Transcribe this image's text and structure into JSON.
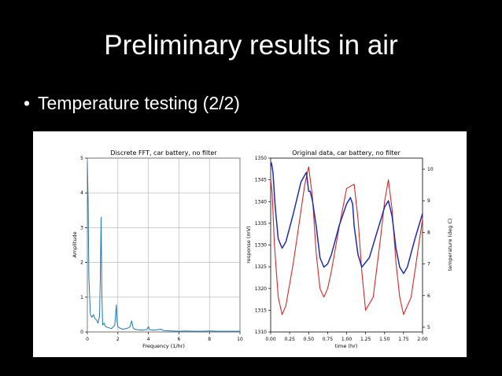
{
  "slide": {
    "title": "Preliminary results in air",
    "bullet": "Temperature testing (2/2)",
    "bullet_marker": "•"
  },
  "colors": {
    "fft_line": "#1f77b4",
    "response_line": "#d62728",
    "temperature_line": "#1f2db0"
  },
  "chart_data": [
    {
      "type": "line",
      "title": "Discrete FFT, car battery, no filter",
      "xlabel": "Frequency (1/hr)",
      "ylabel": "Amplitude",
      "xlim": [
        0,
        10
      ],
      "ylim": [
        0,
        5
      ],
      "xticks": [
        0,
        2,
        4,
        6,
        8,
        10
      ],
      "yticks": [
        0,
        1,
        2,
        3,
        4,
        5
      ],
      "grid": true,
      "series": [
        {
          "x": [
            0,
            0.05,
            0.1,
            0.2,
            0.3,
            0.4,
            0.5,
            0.6,
            0.7,
            0.8,
            0.85,
            0.9,
            0.95,
            1.0,
            1.1,
            1.2,
            1.4,
            1.6,
            1.8,
            1.9,
            1.95,
            2.0,
            2.1,
            2.3,
            2.6,
            2.8,
            2.9,
            3.0,
            3.1,
            3.3,
            3.6,
            3.9,
            4.0,
            4.1,
            4.4,
            4.8,
            5.0,
            5.5,
            6.0,
            6.5,
            7.0,
            7.5,
            8.0,
            8.5,
            9.0,
            9.5,
            10.0
          ],
          "values": [
            4.9,
            3.8,
            1.6,
            0.5,
            0.42,
            0.5,
            0.38,
            0.35,
            0.25,
            0.45,
            1.6,
            3.3,
            1.2,
            0.2,
            0.25,
            0.15,
            0.12,
            0.1,
            0.2,
            0.78,
            0.3,
            0.15,
            0.12,
            0.08,
            0.1,
            0.15,
            0.32,
            0.12,
            0.08,
            0.06,
            0.05,
            0.07,
            0.15,
            0.06,
            0.05,
            0.08,
            0.04,
            0.03,
            0.02,
            0.03,
            0.02,
            0.02,
            0.03,
            0.02,
            0.02,
            0.02,
            0.02
          ]
        }
      ]
    },
    {
      "type": "line",
      "title": "Original data, car battery, no filter",
      "xlabel": "time (hr)",
      "ylabel": "response (mV)",
      "y2label": "temperature (deg C)",
      "xlim": [
        0,
        2
      ],
      "ylim": [
        1310,
        1350
      ],
      "y2lim": [
        4.85,
        10.35
      ],
      "xticks": [
        "0.00",
        "0.25",
        "0.50",
        "0.75",
        "1.00",
        "1.25",
        "1.50",
        "1.75",
        "2.00"
      ],
      "yticks": [
        1310,
        1315,
        1320,
        1325,
        1330,
        1335,
        1340,
        1345,
        1350
      ],
      "y2ticks": [
        5,
        6,
        7,
        8,
        9,
        10
      ],
      "grid": false,
      "series": [
        {
          "axis": "left",
          "x": [
            0.0,
            0.02,
            0.05,
            0.1,
            0.15,
            0.2,
            0.3,
            0.4,
            0.45,
            0.5,
            0.55,
            0.6,
            0.65,
            0.7,
            0.75,
            0.8,
            0.9,
            1.0,
            1.1,
            1.15,
            1.2,
            1.25,
            1.35,
            1.45,
            1.5,
            1.55,
            1.6,
            1.65,
            1.7,
            1.75,
            1.85,
            1.95,
            2.0
          ],
          "values": [
            1345,
            1342,
            1330,
            1318,
            1314,
            1316,
            1326,
            1338,
            1344,
            1348,
            1341,
            1328,
            1320,
            1318,
            1320,
            1324,
            1334,
            1343,
            1344,
            1336,
            1324,
            1315,
            1318,
            1332,
            1340,
            1345,
            1338,
            1326,
            1318,
            1314,
            1318,
            1330,
            1336
          ]
        },
        {
          "axis": "right",
          "x": [
            0.0,
            0.01,
            0.03,
            0.06,
            0.1,
            0.15,
            0.2,
            0.3,
            0.4,
            0.47,
            0.49,
            0.5,
            0.52,
            0.55,
            0.6,
            0.65,
            0.7,
            0.75,
            0.8,
            0.9,
            1.0,
            1.05,
            1.08,
            1.1,
            1.15,
            1.2,
            1.3,
            1.4,
            1.5,
            1.55,
            1.6,
            1.65,
            1.7,
            1.75,
            1.8,
            1.9,
            2.0
          ],
          "values": [
            10.1,
            10.2,
            9.9,
            8.8,
            7.8,
            7.5,
            7.7,
            8.6,
            9.6,
            9.9,
            9.5,
            9.3,
            9.3,
            9.0,
            8.2,
            7.2,
            6.9,
            7.0,
            7.3,
            8.2,
            8.9,
            9.1,
            8.9,
            8.2,
            7.3,
            6.9,
            7.2,
            8.0,
            8.8,
            9.0,
            8.5,
            7.5,
            6.9,
            6.7,
            6.9,
            7.8,
            8.6
          ]
        }
      ]
    }
  ]
}
